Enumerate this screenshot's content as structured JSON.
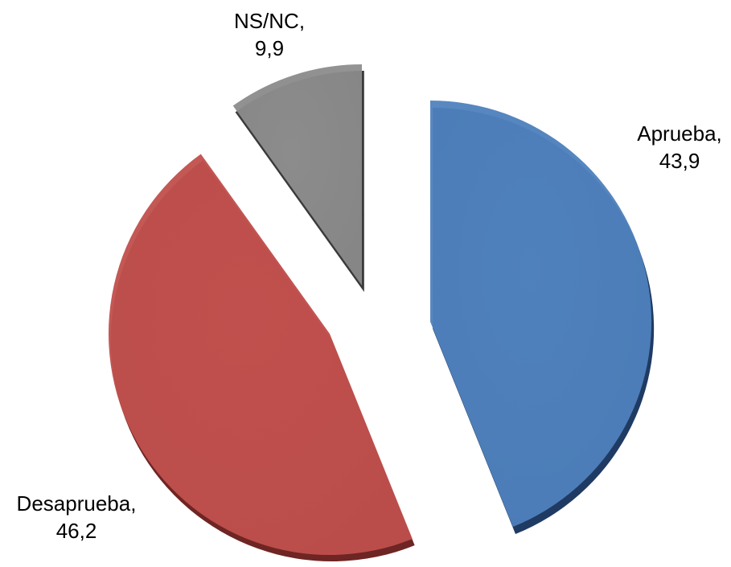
{
  "chart_data": {
    "type": "pie",
    "title": "",
    "start_angle_deg": 0,
    "direction": "clockwise",
    "slices": [
      {
        "name": "Aprueba",
        "value": 43.9,
        "value_label": "43,9",
        "color": "#4F81BD",
        "side_color": "#1F3B63"
      },
      {
        "name": "Desaprueba",
        "value": 46.2,
        "value_label": "46,2",
        "color": "#C0504D",
        "side_color": "#6E2523"
      },
      {
        "name": "NS/NC",
        "value": 9.9,
        "value_label": "9,9",
        "color": "#8C8C8C",
        "side_color": "#3A3A3A"
      }
    ]
  }
}
